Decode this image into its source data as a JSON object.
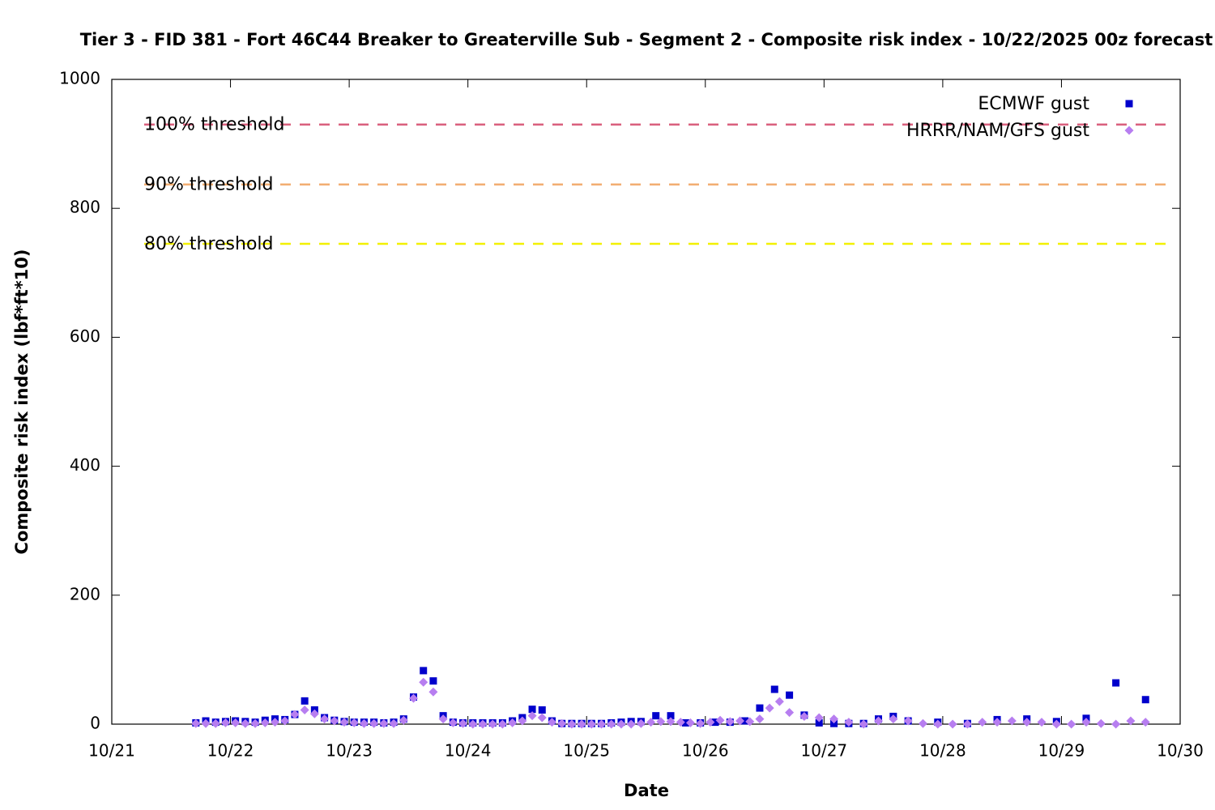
{
  "chart_data": {
    "type": "scatter",
    "title": "Tier 3 - FID 381 - Fort 46C44 Breaker to Greaterville Sub - Segment 2 - Composite risk index - 10/22/2025 00z forecast",
    "x_label": "Date",
    "y_label": "Composite risk index (lbf*ft*10)",
    "xlim": [
      0,
      216
    ],
    "xticks": [
      {
        "value": 0,
        "label": "10/21"
      },
      {
        "value": 24,
        "label": "10/22"
      },
      {
        "value": 48,
        "label": "10/23"
      },
      {
        "value": 72,
        "label": "10/24"
      },
      {
        "value": 96,
        "label": "10/25"
      },
      {
        "value": 120,
        "label": "10/26"
      },
      {
        "value": 144,
        "label": "10/27"
      },
      {
        "value": 168,
        "label": "10/28"
      },
      {
        "value": 192,
        "label": "10/29"
      },
      {
        "value": 216,
        "label": "10/30"
      }
    ],
    "ylim": [
      0,
      1000
    ],
    "yticks": [
      0,
      200,
      400,
      600,
      800,
      1000
    ],
    "legend": "upper right",
    "thresholds": [
      {
        "label": "100% threshold",
        "value": 930,
        "color": "#d9607e"
      },
      {
        "label": "90% threshold",
        "value": 837,
        "color": "#f2ae72"
      },
      {
        "label": "80% threshold",
        "value": 745,
        "color": "#f2f000"
      }
    ],
    "series": [
      {
        "name": "ECMWF gust",
        "color": "#0000cc",
        "marker": "square",
        "x": [
          17,
          19,
          21,
          23,
          25,
          27,
          29,
          31,
          33,
          35,
          37,
          39,
          41,
          43,
          45,
          47,
          49,
          51,
          53,
          55,
          57,
          59,
          61,
          63,
          65,
          67,
          69,
          71,
          73,
          75,
          77,
          79,
          81,
          83,
          85,
          87,
          89,
          91,
          93,
          95,
          97,
          99,
          101,
          103,
          105,
          107,
          110,
          113,
          116,
          119,
          122,
          125,
          128,
          131,
          134,
          137,
          140,
          143,
          146,
          149,
          152,
          155,
          158,
          161,
          167,
          173,
          179,
          185,
          191,
          197,
          203,
          209
        ],
        "values": [
          2,
          5,
          3,
          4,
          5,
          4,
          3,
          6,
          8,
          7,
          15,
          36,
          22,
          10,
          6,
          4,
          3,
          3,
          3,
          2,
          3,
          8,
          42,
          83,
          67,
          13,
          3,
          2,
          2,
          2,
          2,
          2,
          5,
          10,
          23,
          22,
          5,
          1,
          1,
          1,
          1,
          1,
          2,
          3,
          4,
          4,
          13,
          13,
          2,
          2,
          3,
          3,
          5,
          25,
          54,
          45,
          14,
          2,
          1,
          1,
          1,
          8,
          12,
          5,
          3,
          1,
          7,
          8,
          4,
          9,
          64,
          38
        ]
      },
      {
        "name": "HRRR/NAM/GFS gust",
        "color": "#b77ef0",
        "marker": "diamond",
        "x": [
          17,
          19,
          21,
          23,
          25,
          27,
          29,
          31,
          33,
          35,
          37,
          39,
          41,
          43,
          45,
          47,
          49,
          51,
          53,
          55,
          57,
          59,
          61,
          63,
          65,
          67,
          69,
          71,
          73,
          75,
          77,
          79,
          81,
          83,
          85,
          87,
          89,
          91,
          93,
          95,
          97,
          99,
          101,
          103,
          105,
          107,
          109,
          111,
          113,
          115,
          117,
          119,
          121,
          123,
          125,
          127,
          129,
          131,
          133,
          135,
          137,
          140,
          143,
          146,
          149,
          152,
          155,
          158,
          161,
          164,
          167,
          170,
          173,
          176,
          179,
          182,
          185,
          188,
          191,
          194,
          197,
          200,
          203,
          206,
          209
        ],
        "values": [
          1,
          1,
          1,
          2,
          2,
          1,
          1,
          2,
          3,
          5,
          15,
          22,
          16,
          8,
          5,
          3,
          2,
          1,
          1,
          1,
          1,
          6,
          40,
          65,
          50,
          8,
          2,
          1,
          0,
          0,
          0,
          0,
          2,
          5,
          13,
          10,
          3,
          1,
          0,
          0,
          0,
          0,
          0,
          0,
          0,
          1,
          3,
          4,
          4,
          3,
          2,
          1,
          3,
          6,
          4,
          5,
          4,
          8,
          25,
          35,
          18,
          12,
          10,
          8,
          3,
          0,
          5,
          8,
          5,
          1,
          0,
          0,
          0,
          3,
          3,
          5,
          3,
          3,
          0,
          0,
          3,
          1,
          0,
          5,
          3
        ]
      }
    ]
  }
}
